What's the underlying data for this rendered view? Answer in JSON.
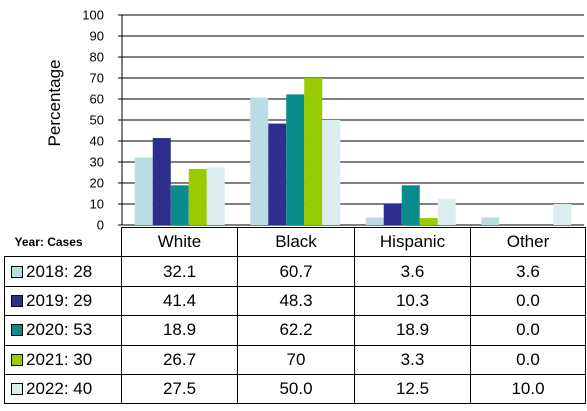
{
  "chart_data": {
    "type": "bar",
    "ylabel": "Percentage",
    "ylim": [
      0,
      100
    ],
    "yticks": [
      0,
      10,
      20,
      30,
      40,
      50,
      60,
      70,
      80,
      90,
      100
    ],
    "grid": true,
    "categories": [
      "White",
      "Black",
      "Hispanic",
      "Other"
    ],
    "series": [
      {
        "name": "2018",
        "cases": "28",
        "color": "#b9dde3",
        "values": [
          32.1,
          60.7,
          3.6,
          3.6
        ],
        "labels": [
          "32.1",
          "60.7",
          "3.6",
          "3.6"
        ]
      },
      {
        "name": "2019",
        "cases": "29",
        "color": "#2e2e8f",
        "values": [
          41.4,
          48.3,
          10.3,
          0.0
        ],
        "labels": [
          "41.4",
          "48.3",
          "10.3",
          "0.0"
        ]
      },
      {
        "name": "2020",
        "cases": "53",
        "color": "#0b8c8c",
        "values": [
          18.9,
          62.2,
          18.9,
          0.0
        ],
        "labels": [
          "18.9",
          "62.2",
          "18.9",
          "0.0"
        ]
      },
      {
        "name": "2021",
        "cases": "30",
        "color": "#99cc00",
        "values": [
          26.7,
          70,
          3.3,
          0.0
        ],
        "labels": [
          "26.7",
          "70",
          "3.3",
          "0.0"
        ]
      },
      {
        "name": "2022",
        "cases": "40",
        "color": "#dcedf0",
        "values": [
          27.5,
          50.0,
          12.5,
          10.0
        ],
        "labels": [
          "27.5",
          "50.0",
          "12.5",
          "10.0"
        ]
      }
    ],
    "table_header": "Year:  Cases"
  }
}
